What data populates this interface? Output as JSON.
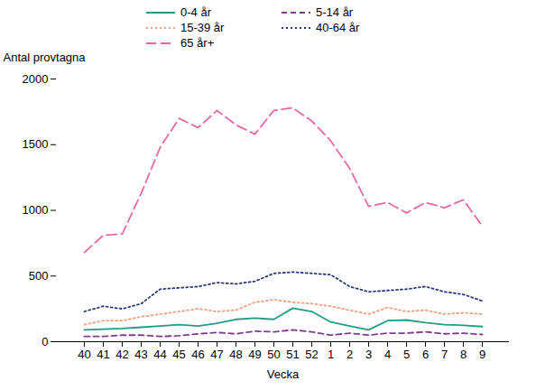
{
  "chart_data": {
    "type": "line",
    "y_label": "Antal provtagna",
    "x_label": "Vecka",
    "categories": [
      "40",
      "41",
      "42",
      "43",
      "44",
      "45",
      "46",
      "47",
      "48",
      "49",
      "50",
      "51",
      "52",
      "1",
      "2",
      "3",
      "4",
      "5",
      "6",
      "7",
      "8",
      "9"
    ],
    "ylim": [
      0,
      2000
    ],
    "yticks": [
      0,
      500,
      1000,
      1500,
      2000
    ],
    "grid": false,
    "legend": "top",
    "series": [
      {
        "name": "0-4 år",
        "color": "#1f9e84",
        "line_style": "solid",
        "values": [
          90,
          95,
          100,
          110,
          120,
          130,
          120,
          140,
          170,
          180,
          170,
          255,
          230,
          150,
          120,
          90,
          160,
          165,
          145,
          130,
          125,
          115
        ]
      },
      {
        "name": "5-14 år",
        "color": "#7b3f8c",
        "line_style": "dashed",
        "values": [
          40,
          40,
          50,
          50,
          40,
          45,
          60,
          70,
          60,
          80,
          75,
          90,
          75,
          50,
          65,
          50,
          65,
          65,
          75,
          60,
          65,
          55
        ]
      },
      {
        "name": "15-39 år",
        "color": "#f0a080",
        "line_style": "dotted",
        "values": [
          130,
          160,
          160,
          190,
          210,
          230,
          250,
          230,
          240,
          300,
          320,
          300,
          290,
          270,
          240,
          210,
          260,
          230,
          240,
          210,
          220,
          210
        ]
      },
      {
        "name": "40-64 år",
        "color": "#2b3a7a",
        "line_style": "dotted",
        "values": [
          230,
          270,
          250,
          290,
          400,
          410,
          420,
          450,
          440,
          460,
          520,
          530,
          520,
          510,
          420,
          380,
          390,
          400,
          420,
          380,
          360,
          310
        ]
      },
      {
        "name": "65 år+",
        "color": "#e36aa6",
        "line_style": "longdash",
        "values": [
          680,
          810,
          820,
          1130,
          1480,
          1700,
          1630,
          1760,
          1650,
          1580,
          1760,
          1780,
          1680,
          1530,
          1320,
          1030,
          1060,
          980,
          1060,
          1020,
          1080,
          880
        ]
      }
    ]
  }
}
